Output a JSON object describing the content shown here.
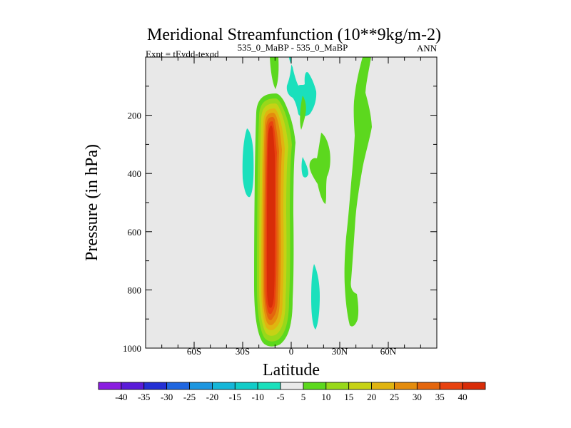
{
  "chart_data": {
    "type": "contour",
    "title": "Meridional Streamfunction (10**9kg/m-2)",
    "subtitle_left": "Expt = tEydd-texqd",
    "subtitle_center": "535_0_MaBP - 535_0_MaBP",
    "subtitle_right": "ANN",
    "xlabel": "Latitude",
    "ylabel": "Pressure (in hPa)",
    "xlim": [
      -90,
      90
    ],
    "ylim": [
      1000,
      0
    ],
    "xticks": [
      {
        "value": -60,
        "label": "60S"
      },
      {
        "value": -30,
        "label": "30S"
      },
      {
        "value": 0,
        "label": "0"
      },
      {
        "value": 30,
        "label": "30N"
      },
      {
        "value": 60,
        "label": "60N"
      }
    ],
    "yticks": [
      {
        "value": 200,
        "label": "200"
      },
      {
        "value": 400,
        "label": "400"
      },
      {
        "value": 600,
        "label": "600"
      },
      {
        "value": 800,
        "label": "800"
      },
      {
        "value": 1000,
        "label": "1000"
      }
    ],
    "background_color": "#e8e8e8",
    "colorbar": {
      "labels": [
        "-40",
        "-35",
        "-30",
        "-25",
        "-20",
        "-15",
        "-10",
        "-5",
        "5",
        "10",
        "15",
        "20",
        "25",
        "30",
        "35",
        "40"
      ],
      "colors": [
        "#8a1de0",
        "#5a1cd8",
        "#2430d4",
        "#1f66e0",
        "#1d96e0",
        "#15b6d8",
        "#12ccc8",
        "#1ae0bc",
        "#eaeaea",
        "#5cd81e",
        "#98d81a",
        "#c6d215",
        "#e0b410",
        "#e48c0d",
        "#e4660d",
        "#e8420f",
        "#d82c08"
      ]
    },
    "contours": [
      {
        "name": "south-cell",
        "center_lat": -12,
        "peak_value": 40,
        "pressure_range": [
          130,
          980
        ]
      },
      {
        "name": "teal-band-30s",
        "lat": -26,
        "value": -10,
        "pressure_range": [
          240,
          470
        ]
      },
      {
        "name": "teal-top-0",
        "lat": 8,
        "value": -10,
        "pressure_range": [
          0,
          190
        ]
      },
      {
        "name": "teal-low-10n",
        "lat": 14,
        "value": -10,
        "pressure_range": [
          700,
          960
        ]
      },
      {
        "name": "green-top-0",
        "lat": -10,
        "value": 5,
        "pressure_range": [
          0,
          130
        ]
      },
      {
        "name": "green-20n",
        "lat": 18,
        "value": 5,
        "pressure_range": [
          240,
          500
        ]
      },
      {
        "name": "green-40n",
        "lat": 40,
        "value": 5,
        "pressure_range": [
          0,
          960
        ]
      }
    ]
  }
}
